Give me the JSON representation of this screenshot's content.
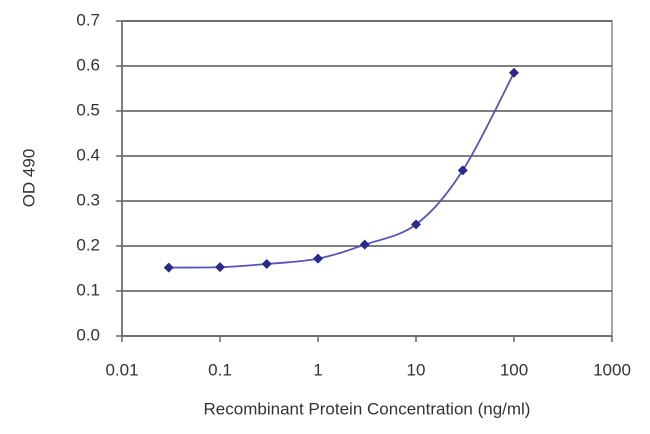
{
  "chart_data": {
    "type": "line",
    "x_label": "Recombinant Protein Concentration (ng/ml)",
    "y_label": "OD 490",
    "x": [
      0.03,
      0.1,
      0.3,
      1,
      3,
      10,
      30,
      100
    ],
    "series": [
      {
        "color": "#2a2a8a",
        "values": [
          0.152,
          0.153,
          0.16,
          0.172,
          0.203,
          0.248,
          0.368,
          0.585
        ]
      }
    ],
    "xlim": [
      0.01,
      1000
    ],
    "xticks": [
      0.01,
      0.1,
      1,
      10,
      100,
      1000
    ],
    "xlog": true,
    "ylim": [
      0,
      0.7
    ],
    "yticks": [
      {
        "value": 0,
        "label": "0.0"
      },
      0.1,
      0.2,
      0.3,
      0.4,
      0.5,
      0.6,
      0.7
    ],
    "grid": true
  }
}
